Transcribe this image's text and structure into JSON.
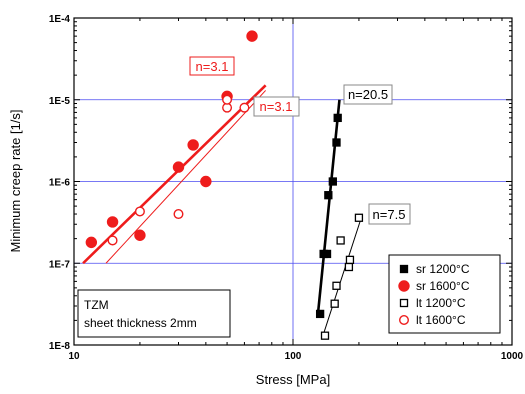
{
  "chart_data": {
    "type": "scatter",
    "x_scale": "log",
    "y_scale": "log",
    "xlim": [
      10,
      1000
    ],
    "ylim": [
      1e-08,
      0.0001
    ],
    "xlabel": "Stress [MPa]",
    "ylabel": "Minimum creep rate [1/s]",
    "x_ticks": [
      {
        "value": 10,
        "label": "10"
      },
      {
        "value": 100,
        "label": "100"
      },
      {
        "value": 1000,
        "label": "1000"
      }
    ],
    "y_ticks": [
      {
        "value": 1e-08,
        "label": "1E-8"
      },
      {
        "value": 1e-07,
        "label": "1E-7"
      },
      {
        "value": 1e-06,
        "label": "1E-6"
      },
      {
        "value": 1e-05,
        "label": "1E-5"
      },
      {
        "value": 0.0001,
        "label": "1E-4"
      }
    ],
    "grid": "major",
    "legend_position": "bottom-right",
    "note": {
      "line1": "TZM",
      "line2": "sheet thickness 2mm"
    },
    "series": [
      {
        "name": "sr 1200°C",
        "color": "#000000",
        "marker": "square",
        "filled": true,
        "points": [
          [
            133,
            2.4e-08
          ],
          [
            138,
            1.3e-07
          ],
          [
            143,
            1.3e-07
          ],
          [
            145,
            6.8e-07
          ],
          [
            152,
            1e-06
          ],
          [
            158,
            3e-06
          ],
          [
            160,
            6e-06
          ]
        ]
      },
      {
        "name": "sr 1600°C",
        "color": "#ee1c1c",
        "marker": "circle",
        "filled": true,
        "points": [
          [
            12,
            1.8e-07
          ],
          [
            15,
            3.2e-07
          ],
          [
            20,
            2.2e-07
          ],
          [
            30,
            1.5e-06
          ],
          [
            35,
            2.8e-06
          ],
          [
            40,
            1e-06
          ],
          [
            50,
            1.1e-05
          ],
          [
            65,
            6e-05
          ]
        ]
      },
      {
        "name": "lt 1200°C",
        "color": "#000000",
        "marker": "square",
        "filled": false,
        "points": [
          [
            140,
            1.3e-08
          ],
          [
            155,
            3.2e-08
          ],
          [
            158,
            5.3e-08
          ],
          [
            165,
            1.9e-07
          ],
          [
            180,
            9e-08
          ],
          [
            182,
            1.1e-07
          ],
          [
            200,
            3.6e-07
          ]
        ]
      },
      {
        "name": "lt 1600°C",
        "color": "#ee1c1c",
        "marker": "circle",
        "filled": false,
        "points": [
          [
            15,
            1.9e-07
          ],
          [
            20,
            4.3e-07
          ],
          [
            30,
            4e-07
          ],
          [
            50,
            8e-06
          ],
          [
            50,
            1e-05
          ],
          [
            60,
            8e-06
          ]
        ]
      }
    ],
    "fit_lines": [
      {
        "series": "sr 1600°C",
        "n_label": "n=3.1",
        "color": "#ee1c1c",
        "width": "thick",
        "x": [
          11,
          75
        ],
        "y": [
          1e-07,
          1.5e-05
        ]
      },
      {
        "series": "lt 1600°C",
        "n_label": "n=3.1",
        "color": "#ee1c1c",
        "width": "thin",
        "x": [
          14,
          75
        ],
        "y": [
          1e-07,
          1.3e-05
        ]
      },
      {
        "series": "sr 1200°C",
        "n_label": "n=20.5",
        "color": "#000000",
        "width": "thick",
        "x": [
          130,
          163
        ],
        "y": [
          2.4e-08,
          1e-05
        ]
      },
      {
        "series": "lt 1200°C",
        "n_label": "n=7.5",
        "color": "#000000",
        "width": "thin",
        "x": [
          137,
          205
        ],
        "y": [
          1.3e-08,
          3.6e-07
        ]
      }
    ]
  }
}
